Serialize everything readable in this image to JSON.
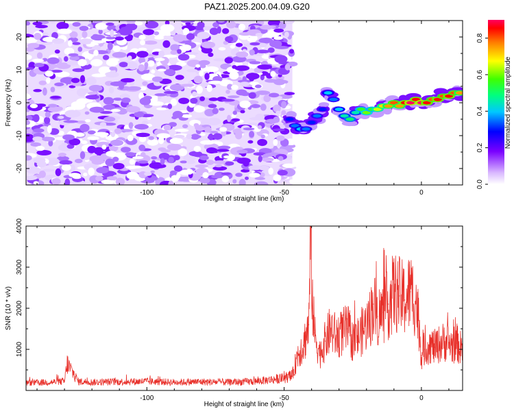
{
  "title": "PAZ1.2025.200.04.09.G20",
  "chart_data": [
    {
      "type": "heatmap",
      "xlabel": "Height of straight line (km)",
      "ylabel": "Frequency (Hz)",
      "xlim": [
        -144,
        15
      ],
      "ylim": [
        -25,
        25
      ],
      "x_ticks": [
        -100,
        -50,
        0
      ],
      "y_ticks": [
        -20,
        -10,
        0,
        10,
        20
      ],
      "colorbar": {
        "label": "Normalized spectral amplitude",
        "range": [
          0.0,
          0.9
        ],
        "ticks": [
          0.0,
          0.2,
          0.4,
          0.6,
          0.8
        ],
        "colormap": "rainbow (light violet to red)"
      },
      "noise_region": {
        "x_range": [
          -144,
          -47
        ],
        "freq_range": [
          -25,
          25
        ],
        "amplitude": 0.05
      },
      "signal_trace": {
        "x": [
          -48,
          -46,
          -44,
          -42,
          -40,
          -38,
          -36,
          -34,
          -32,
          -30,
          -28,
          -26,
          -24,
          -22,
          -20,
          -18,
          -16,
          -14,
          -12,
          -10,
          -8,
          -6,
          -4,
          -2,
          0,
          2,
          4,
          6,
          8,
          10,
          12,
          14
        ],
        "freq": [
          -5,
          -7,
          -8,
          -8,
          -6,
          -4,
          -2,
          3,
          1,
          -2,
          -4,
          -5,
          -3,
          -2,
          -3,
          -2,
          -2,
          -1,
          -1,
          0,
          -1,
          0,
          0,
          1,
          0,
          0,
          1,
          1,
          2,
          2,
          3,
          3
        ],
        "amplitude": [
          0.3,
          0.35,
          0.4,
          0.35,
          0.3,
          0.35,
          0.3,
          0.4,
          0.35,
          0.4,
          0.45,
          0.5,
          0.45,
          0.55,
          0.6,
          0.55,
          0.65,
          0.7,
          0.75,
          0.8,
          0.75,
          0.85,
          0.9,
          0.85,
          0.9,
          0.85,
          0.8,
          0.85,
          0.8,
          0.85,
          0.8,
          0.75
        ]
      }
    },
    {
      "type": "line",
      "xlabel": "Height of straight line (km)",
      "ylabel": "SNR (10 * v/v)",
      "xlim": [
        -144,
        15
      ],
      "ylim": [
        0,
        4000
      ],
      "x_ticks": [
        -100,
        -50,
        0
      ],
      "y_ticks": [
        1000,
        2000,
        3000,
        4000
      ],
      "series": [
        {
          "color": "#e8302a",
          "x": [
            -144,
            -135,
            -130,
            -129,
            -125,
            -120,
            -110,
            -100,
            -90,
            -80,
            -70,
            -60,
            -55,
            -50,
            -47,
            -45,
            -43,
            -41,
            -40.3,
            -39.7,
            -39,
            -37,
            -35,
            -33,
            -31,
            -29,
            -27,
            -25,
            -23,
            -21,
            -19,
            -17.5,
            -16,
            -14,
            -12,
            -10,
            -8,
            -6,
            -4,
            -2,
            -1,
            0,
            1,
            3,
            5,
            7,
            9,
            11,
            13,
            15
          ],
          "values": [
            180,
            200,
            220,
            650,
            220,
            200,
            210,
            220,
            200,
            210,
            200,
            220,
            260,
            300,
            350,
            900,
            1100,
            1600,
            4000,
            2300,
            1400,
            900,
            1200,
            1500,
            1300,
            1400,
            1500,
            1200,
            1300,
            1500,
            1700,
            2100,
            1800,
            1900,
            2100,
            2400,
            2300,
            2200,
            2400,
            2200,
            1700,
            850,
            1000,
            1100,
            1050,
            1150,
            1200,
            1100,
            1150,
            950
          ]
        }
      ]
    }
  ]
}
